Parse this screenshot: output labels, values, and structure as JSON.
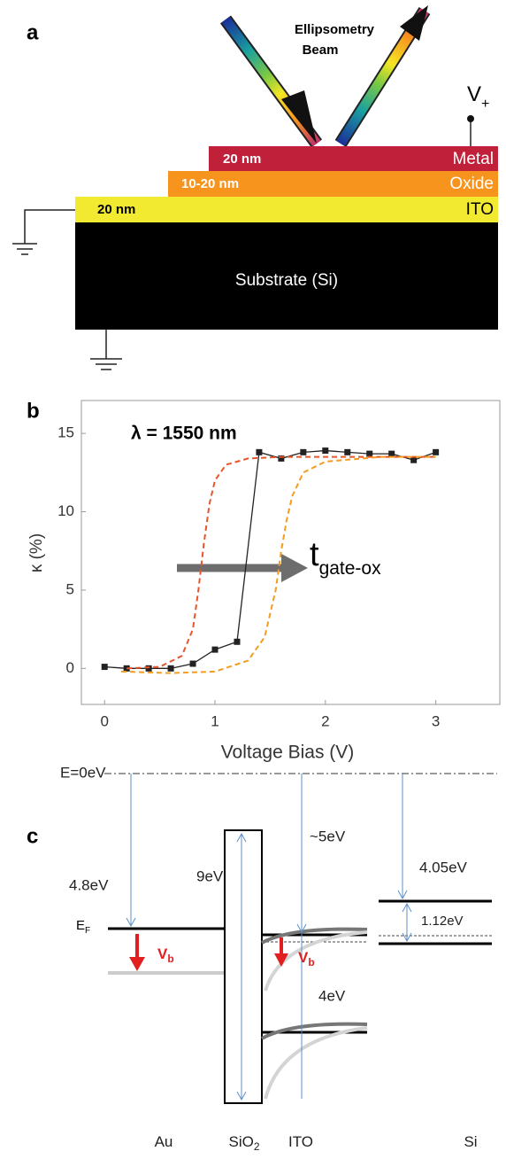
{
  "panel_a": {
    "label": "a",
    "beam_label": [
      "Ellipsometry",
      "Beam"
    ],
    "voltage": {
      "main": "V",
      "sub": "+"
    },
    "layers": [
      {
        "thickness": "20 nm",
        "name": "Metal"
      },
      {
        "thickness": "10-20 nm",
        "name": "Oxide"
      },
      {
        "thickness": "20 nm",
        "name": "ITO"
      }
    ],
    "substrate": "Substrate (Si)"
  },
  "chart_data": {
    "type": "line",
    "panel_label": "b",
    "xlabel": "Voltage Bias (V)",
    "ylabel": "κ (%)",
    "annotations": {
      "wavelength": "λ = 1550 nm",
      "thickness": {
        "main": "t",
        "sub": "gate-ox"
      }
    },
    "x": [
      0,
      0.2,
      0.4,
      0.6,
      0.8,
      1.0,
      1.2,
      1.4,
      1.6,
      1.8,
      2.0,
      2.2,
      2.4,
      2.6,
      2.8,
      3.0
    ],
    "series": [
      {
        "color": "#222222",
        "marker": "square",
        "values": [
          0.1,
          0.0,
          0.0,
          0.0,
          0.3,
          1.2,
          1.7,
          13.8,
          13.4,
          13.8,
          13.9,
          13.8,
          13.7,
          13.7,
          13.3,
          13.8
        ]
      },
      {
        "color": "#e8552a",
        "dashed": true,
        "x": [
          0.2,
          0.5,
          0.7,
          0.8,
          0.85,
          0.9,
          0.95,
          1.0,
          1.1,
          1.3,
          1.6,
          2.0,
          3.0
        ],
        "values": [
          0,
          0.1,
          0.8,
          2.5,
          5,
          8,
          10.5,
          12,
          13,
          13.4,
          13.5,
          13.5,
          13.5
        ]
      },
      {
        "color": "#f39c1f",
        "dashed": true,
        "x": [
          0.15,
          0.6,
          1.0,
          1.3,
          1.45,
          1.55,
          1.6,
          1.65,
          1.7,
          1.8,
          2.0,
          2.5,
          3.0
        ],
        "values": [
          -0.2,
          -0.3,
          -0.2,
          0.5,
          2,
          5,
          7.5,
          9.5,
          11,
          12.5,
          13.2,
          13.5,
          13.5
        ]
      }
    ],
    "xlim": [
      -0.21,
      3.58
    ],
    "ylim": [
      -2.3,
      17.1
    ],
    "xticks": [
      0,
      1,
      2,
      3
    ],
    "yticks": [
      0,
      5,
      10,
      15
    ],
    "grid": false
  },
  "panel_c": {
    "label": "c",
    "vacuum": "E=0eV",
    "au_gap": "4.8eV",
    "sio2_gap": "9eV",
    "ito_gap": "~5eV",
    "si_gap": "4.05eV",
    "si_bandgap": "1.12eV",
    "fermi": {
      "main": "E",
      "sub": "F"
    },
    "bias_au": {
      "main": "V",
      "sub": "b"
    },
    "bias_ito": {
      "main": "V",
      "sub": "b"
    },
    "ito_bandgap": "4eV",
    "materials": [
      {
        "main": "Au"
      },
      {
        "main": "SiO",
        "sub": "2"
      },
      {
        "main": "ITO"
      },
      {
        "main": "Si"
      }
    ]
  }
}
